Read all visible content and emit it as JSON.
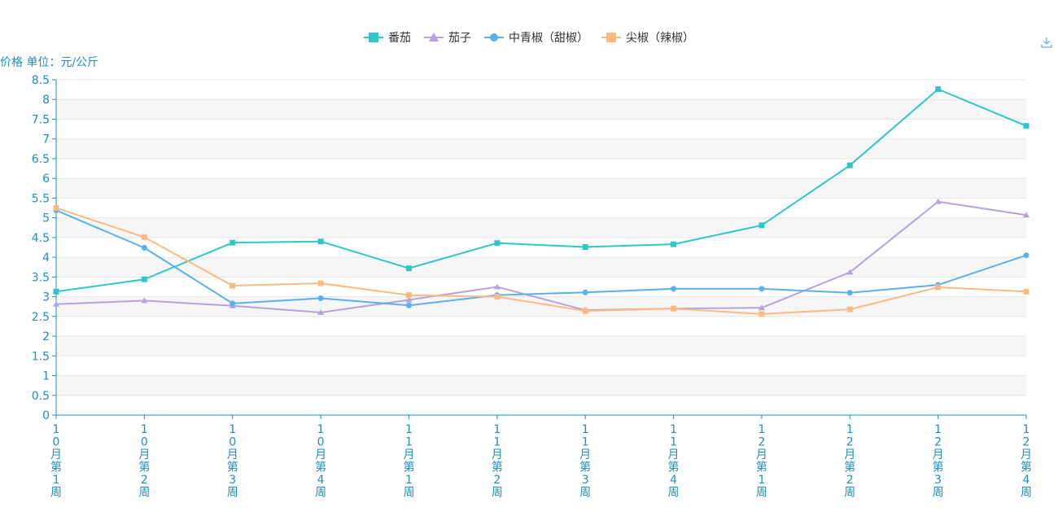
{
  "ylabel": "价格 单位：元/公斤",
  "icons": {
    "download": "download-icon"
  },
  "colors": {
    "axis": "#1f8fc0",
    "grid_band": "#f6f6f6",
    "grid_line": "#e6e6e6"
  },
  "chart_data": {
    "type": "line",
    "categories": [
      "10月第1周",
      "10月第2周",
      "10月第3周",
      "10月第4周",
      "11月第1周",
      "11月第2周",
      "11月第3周",
      "11月第4周",
      "12月第1周",
      "12月第2周",
      "12月第3周",
      "12月第4周"
    ],
    "ylim": [
      0,
      8.5
    ],
    "yticks": [
      "0",
      "0.5",
      "1",
      "1.5",
      "2",
      "2.5",
      "3",
      "3.5",
      "4",
      "4.5",
      "5",
      "5.5",
      "6",
      "6.5",
      "7",
      "7.5",
      "8",
      "8.5"
    ],
    "ylabel": "价格 单位：元/公斤",
    "grid": true,
    "legend": "top-center",
    "series": [
      {
        "name": "番茄",
        "color": "#2ec7c9",
        "marker": "square",
        "values": [
          3.13,
          3.44,
          4.37,
          4.4,
          3.72,
          4.36,
          4.26,
          4.33,
          4.81,
          6.33,
          8.26,
          7.33
        ]
      },
      {
        "name": "茄子",
        "color": "#b6a2de",
        "marker": "triangle",
        "values": [
          2.81,
          2.9,
          2.77,
          2.6,
          2.92,
          3.25,
          2.66,
          2.7,
          2.72,
          3.62,
          5.41,
          5.07
        ]
      },
      {
        "name": "中青椒（甜椒）",
        "color": "#5ab1ef",
        "marker": "circle",
        "values": [
          5.19,
          4.24,
          2.83,
          2.96,
          2.78,
          3.04,
          3.11,
          3.2,
          3.2,
          3.1,
          3.3,
          4.05
        ]
      },
      {
        "name": "尖椒（辣椒）",
        "color": "#ffb980",
        "marker": "square",
        "values": [
          5.25,
          4.51,
          3.28,
          3.34,
          3.04,
          3.0,
          2.64,
          2.7,
          2.56,
          2.68,
          3.24,
          3.13
        ]
      }
    ]
  }
}
